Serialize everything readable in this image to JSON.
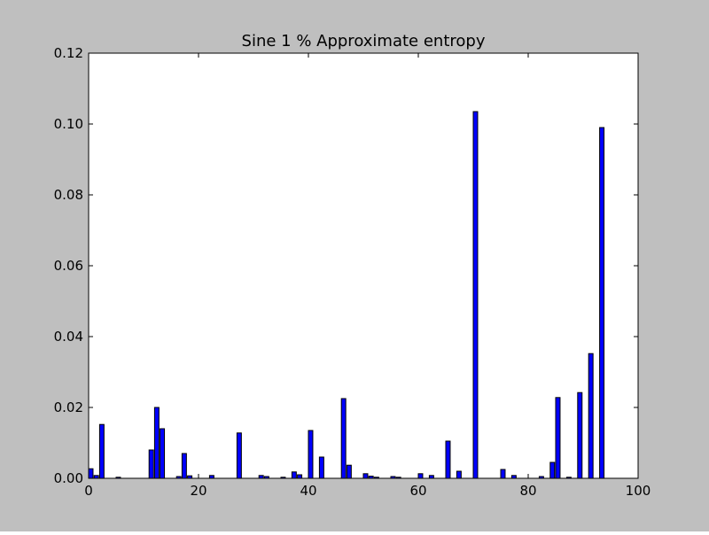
{
  "chart_data": {
    "type": "bar",
    "title": "Sine 1 % Approximate entropy",
    "xlabel": "",
    "ylabel": "",
    "xlim": [
      0,
      100
    ],
    "ylim": [
      0,
      0.12
    ],
    "xticks": [
      "0",
      "20",
      "40",
      "60",
      "80",
      "100"
    ],
    "yticks": [
      "0.00",
      "0.02",
      "0.04",
      "0.06",
      "0.08",
      "0.10",
      "0.12"
    ],
    "bar_color": "#0000ff",
    "bar_width": 0.8,
    "grid": false,
    "x": [
      0,
      1,
      2,
      5,
      11,
      12,
      13,
      16,
      17,
      18,
      22,
      27,
      31,
      32,
      35,
      37,
      38,
      40,
      42,
      46,
      47,
      50,
      51,
      52,
      55,
      56,
      60,
      62,
      65,
      67,
      70,
      75,
      77,
      82,
      84,
      85,
      87,
      89,
      91,
      93
    ],
    "values": [
      0.0027,
      0.0008,
      0.0152,
      0.0003,
      0.008,
      0.02,
      0.014,
      0.0005,
      0.007,
      0.0007,
      0.0008,
      0.0128,
      0.0008,
      0.0005,
      0.0003,
      0.0018,
      0.001,
      0.0135,
      0.006,
      0.0225,
      0.0037,
      0.0013,
      0.0006,
      0.0003,
      0.0005,
      0.0003,
      0.0013,
      0.0008,
      0.0105,
      0.002,
      0.1035,
      0.0025,
      0.0008,
      0.0005,
      0.0045,
      0.0228,
      0.0003,
      0.0242,
      0.0352,
      0.099
    ]
  }
}
